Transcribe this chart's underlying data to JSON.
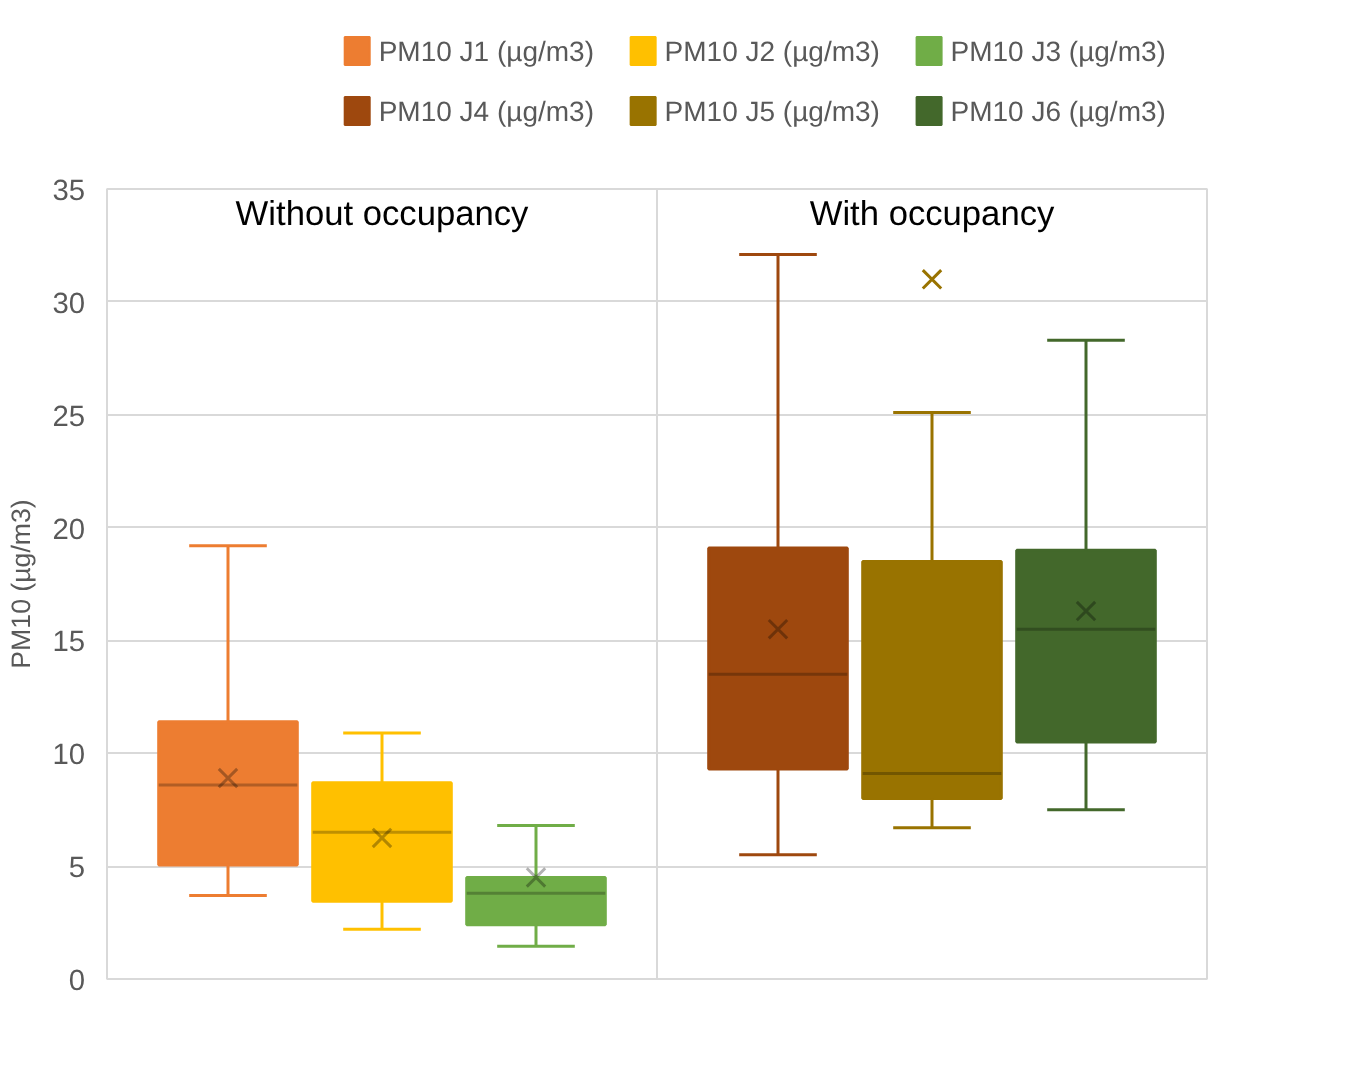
{
  "chart_data": {
    "type": "box",
    "ylabel": "PM10 (µg/m3)",
    "categories": [
      null,
      null
    ],
    "ylim": [
      0,
      35
    ],
    "yticks": [
      0,
      5,
      10,
      15,
      20,
      25,
      30,
      35
    ],
    "grid": true,
    "legend": "top",
    "tick_labels": "y",
    "marker": "cross",
    "annotations": [
      "Without occupancy",
      "With occupancy"
    ],
    "series": [
      {
        "name": "PM10 J1 (µg/m3)",
        "color": "#ed7d31",
        "boxes": [
          {
            "low": 3.7,
            "q1": 5.05,
            "median": 8.6,
            "q3": 11.4,
            "high": 19.2,
            "mean": 8.9
          },
          null
        ]
      },
      {
        "name": "PM10 J2 (µg/m3)",
        "color": "#ffc000",
        "boxes": [
          {
            "low": 2.2,
            "q1": 3.45,
            "median": 6.5,
            "q3": 8.7,
            "high": 10.9,
            "mean": 6.25
          },
          null
        ]
      },
      {
        "name": "PM10 J3 (µg/m3)",
        "color": "#70ad47",
        "boxes": [
          {
            "low": 1.45,
            "q1": 2.4,
            "median": 3.8,
            "q3": 4.5,
            "high": 6.8,
            "mean": 4.5
          },
          null
        ]
      },
      {
        "name": "PM10 J4 (µg/m3)",
        "color": "#9e480e",
        "boxes": [
          null,
          {
            "low": 5.5,
            "q1": 9.3,
            "median": 13.5,
            "q3": 19.1,
            "high": 32.1,
            "mean": 15.5
          }
        ]
      },
      {
        "name": "PM10 J5 (µg/m3)",
        "color": "#997300",
        "boxes": [
          null,
          {
            "low": 6.7,
            "q1": 8.0,
            "median": 9.1,
            "q3": 18.5,
            "high": 25.1,
            "outliers": [
              31.0
            ]
          }
        ]
      },
      {
        "name": "PM10 J6 (µg/m3)",
        "color": "#43682b",
        "boxes": [
          null,
          {
            "low": 7.5,
            "q1": 10.5,
            "median": 15.5,
            "q3": 19.0,
            "high": 28.3,
            "mean": 16.3
          }
        ]
      }
    ]
  }
}
